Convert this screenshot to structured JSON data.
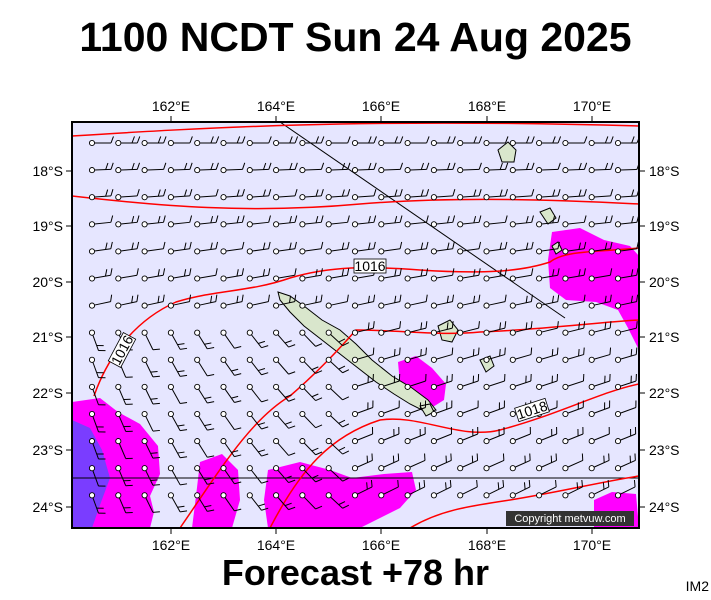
{
  "title": "1100 NCDT Sun 24 Aug 2025",
  "subtitle": "Forecast +78 hr",
  "chart_code": "IM2",
  "copyright": "Copyright metvuw.com",
  "map": {
    "lon_labels": [
      "162°E",
      "164°E",
      "166°E",
      "168°E",
      "170°E"
    ],
    "lat_labels": [
      "18°S",
      "19°S",
      "20°S",
      "21°S",
      "22°S",
      "23°S",
      "24°S"
    ],
    "isobar_labels": [
      "1016",
      "1016",
      "1018"
    ],
    "colors": {
      "sea": "#e6e6ff",
      "isobar": "#ff0000",
      "rain_light": "#ff00ff",
      "rain_heavy": "#7a3dff",
      "land": "#d9e6cc"
    }
  }
}
